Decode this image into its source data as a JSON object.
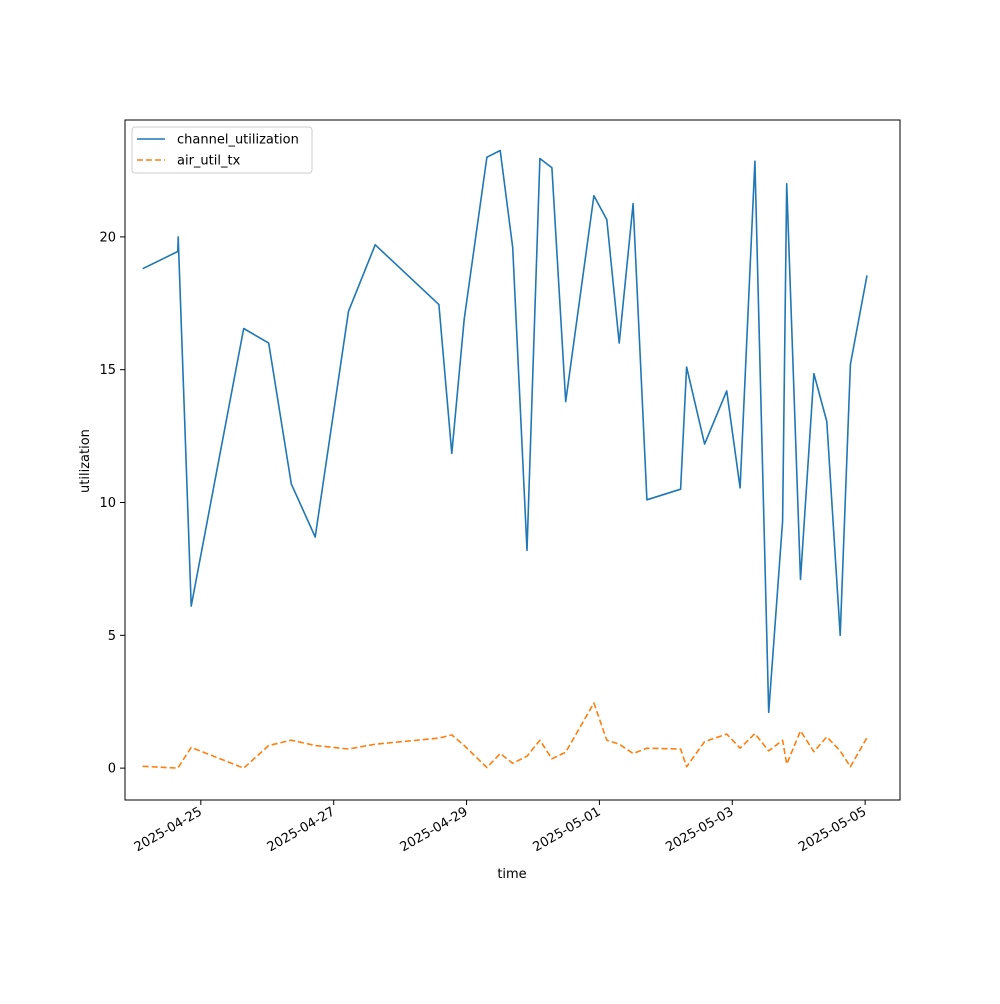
{
  "chart_data": {
    "type": "line",
    "title": "",
    "xlabel": "time",
    "ylabel": "utilization",
    "x_tick_labels": [
      "2025-04-25",
      "2025-04-27",
      "2025-04-29",
      "2025-05-01",
      "2025-05-03",
      "2025-05-05"
    ],
    "y_tick_labels": [
      "0",
      "5",
      "10",
      "15",
      "20"
    ],
    "y_ticks": [
      0,
      5,
      10,
      15,
      20
    ],
    "xlim": [
      "2025-04-23 20:36",
      "2025-05-05 12:36"
    ],
    "ylim": [
      -1.2,
      24.4
    ],
    "grid": false,
    "legend_position": "upper-left",
    "series": [
      {
        "name": "channel_utilization",
        "color": "#1f77b4",
        "line_style": "solid",
        "points": [
          [
            "2025-04-24 03:00",
            18.8
          ],
          [
            "2025-04-24 15:40",
            19.45
          ],
          [
            "2025-04-24 15:50",
            20.0
          ],
          [
            "2025-04-24 20:30",
            6.1
          ],
          [
            "2025-04-25 15:30",
            16.55
          ],
          [
            "2025-04-26 00:30",
            16.0
          ],
          [
            "2025-04-26 08:40",
            10.7
          ],
          [
            "2025-04-26 17:20",
            8.7
          ],
          [
            "2025-04-27 05:20",
            17.2
          ],
          [
            "2025-04-27 15:00",
            19.7
          ],
          [
            "2025-04-28 14:00",
            17.45
          ],
          [
            "2025-04-28 18:40",
            11.85
          ],
          [
            "2025-04-28 23:10",
            16.9
          ],
          [
            "2025-04-29 07:20",
            23.0
          ],
          [
            "2025-04-29 12:10",
            23.25
          ],
          [
            "2025-04-29 16:40",
            19.6
          ],
          [
            "2025-04-29 21:50",
            8.2
          ],
          [
            "2025-04-30 02:30",
            22.95
          ],
          [
            "2025-04-30 06:50",
            22.6
          ],
          [
            "2025-04-30 11:50",
            13.8
          ],
          [
            "2025-04-30 22:00",
            21.55
          ],
          [
            "2025-05-01 02:40",
            20.65
          ],
          [
            "2025-05-01 07:10",
            16.0
          ],
          [
            "2025-05-01 12:10",
            21.25
          ],
          [
            "2025-05-01 17:10",
            10.1
          ],
          [
            "2025-05-02 05:20",
            10.5
          ],
          [
            "2025-05-02 07:30",
            15.1
          ],
          [
            "2025-05-02 14:00",
            12.2
          ],
          [
            "2025-05-02 22:00",
            14.2
          ],
          [
            "2025-05-03 02:50",
            10.55
          ],
          [
            "2025-05-03 08:10",
            22.85
          ],
          [
            "2025-05-03 13:10",
            2.1
          ],
          [
            "2025-05-03 18:10",
            9.3
          ],
          [
            "2025-05-03 19:40",
            22.0
          ],
          [
            "2025-05-04 00:40",
            7.1
          ],
          [
            "2025-05-04 05:30",
            14.85
          ],
          [
            "2025-05-04 10:10",
            13.05
          ],
          [
            "2025-05-04 15:00",
            5.0
          ],
          [
            "2025-05-04 18:40",
            15.2
          ],
          [
            "2025-05-05 00:40",
            18.55
          ]
        ]
      },
      {
        "name": "air_util_tx",
        "color": "#ff7f0e",
        "line_style": "dashed",
        "points": [
          [
            "2025-04-24 03:00",
            0.07
          ],
          [
            "2025-04-24 15:40",
            0.0
          ],
          [
            "2025-04-24 20:30",
            0.78
          ],
          [
            "2025-04-25 15:30",
            0.0
          ],
          [
            "2025-04-26 00:30",
            0.85
          ],
          [
            "2025-04-26 08:40",
            1.05
          ],
          [
            "2025-04-26 17:20",
            0.85
          ],
          [
            "2025-04-27 05:20",
            0.72
          ],
          [
            "2025-04-27 15:00",
            0.9
          ],
          [
            "2025-04-28 14:00",
            1.13
          ],
          [
            "2025-04-28 18:40",
            1.25
          ],
          [
            "2025-04-28 23:10",
            0.85
          ],
          [
            "2025-04-29 07:20",
            0.02
          ],
          [
            "2025-04-29 12:10",
            0.55
          ],
          [
            "2025-04-29 16:40",
            0.18
          ],
          [
            "2025-04-29 21:50",
            0.45
          ],
          [
            "2025-04-30 02:30",
            1.05
          ],
          [
            "2025-04-30 06:50",
            0.35
          ],
          [
            "2025-04-30 11:50",
            0.6
          ],
          [
            "2025-04-30 22:00",
            2.45
          ],
          [
            "2025-05-01 02:40",
            1.05
          ],
          [
            "2025-05-01 07:10",
            0.9
          ],
          [
            "2025-05-01 12:10",
            0.55
          ],
          [
            "2025-05-01 17:10",
            0.75
          ],
          [
            "2025-05-02 05:20",
            0.72
          ],
          [
            "2025-05-02 07:30",
            0.05
          ],
          [
            "2025-05-02 14:00",
            1.0
          ],
          [
            "2025-05-02 22:00",
            1.28
          ],
          [
            "2025-05-03 02:50",
            0.75
          ],
          [
            "2025-05-03 08:10",
            1.3
          ],
          [
            "2025-05-03 13:10",
            0.65
          ],
          [
            "2025-05-03 18:10",
            1.05
          ],
          [
            "2025-05-03 19:40",
            0.15
          ],
          [
            "2025-05-04 00:40",
            1.4
          ],
          [
            "2025-05-04 05:30",
            0.62
          ],
          [
            "2025-05-04 10:10",
            1.18
          ],
          [
            "2025-05-04 15:00",
            0.65
          ],
          [
            "2025-05-04 18:40",
            0.05
          ],
          [
            "2025-05-05 00:40",
            1.15
          ]
        ]
      }
    ]
  }
}
